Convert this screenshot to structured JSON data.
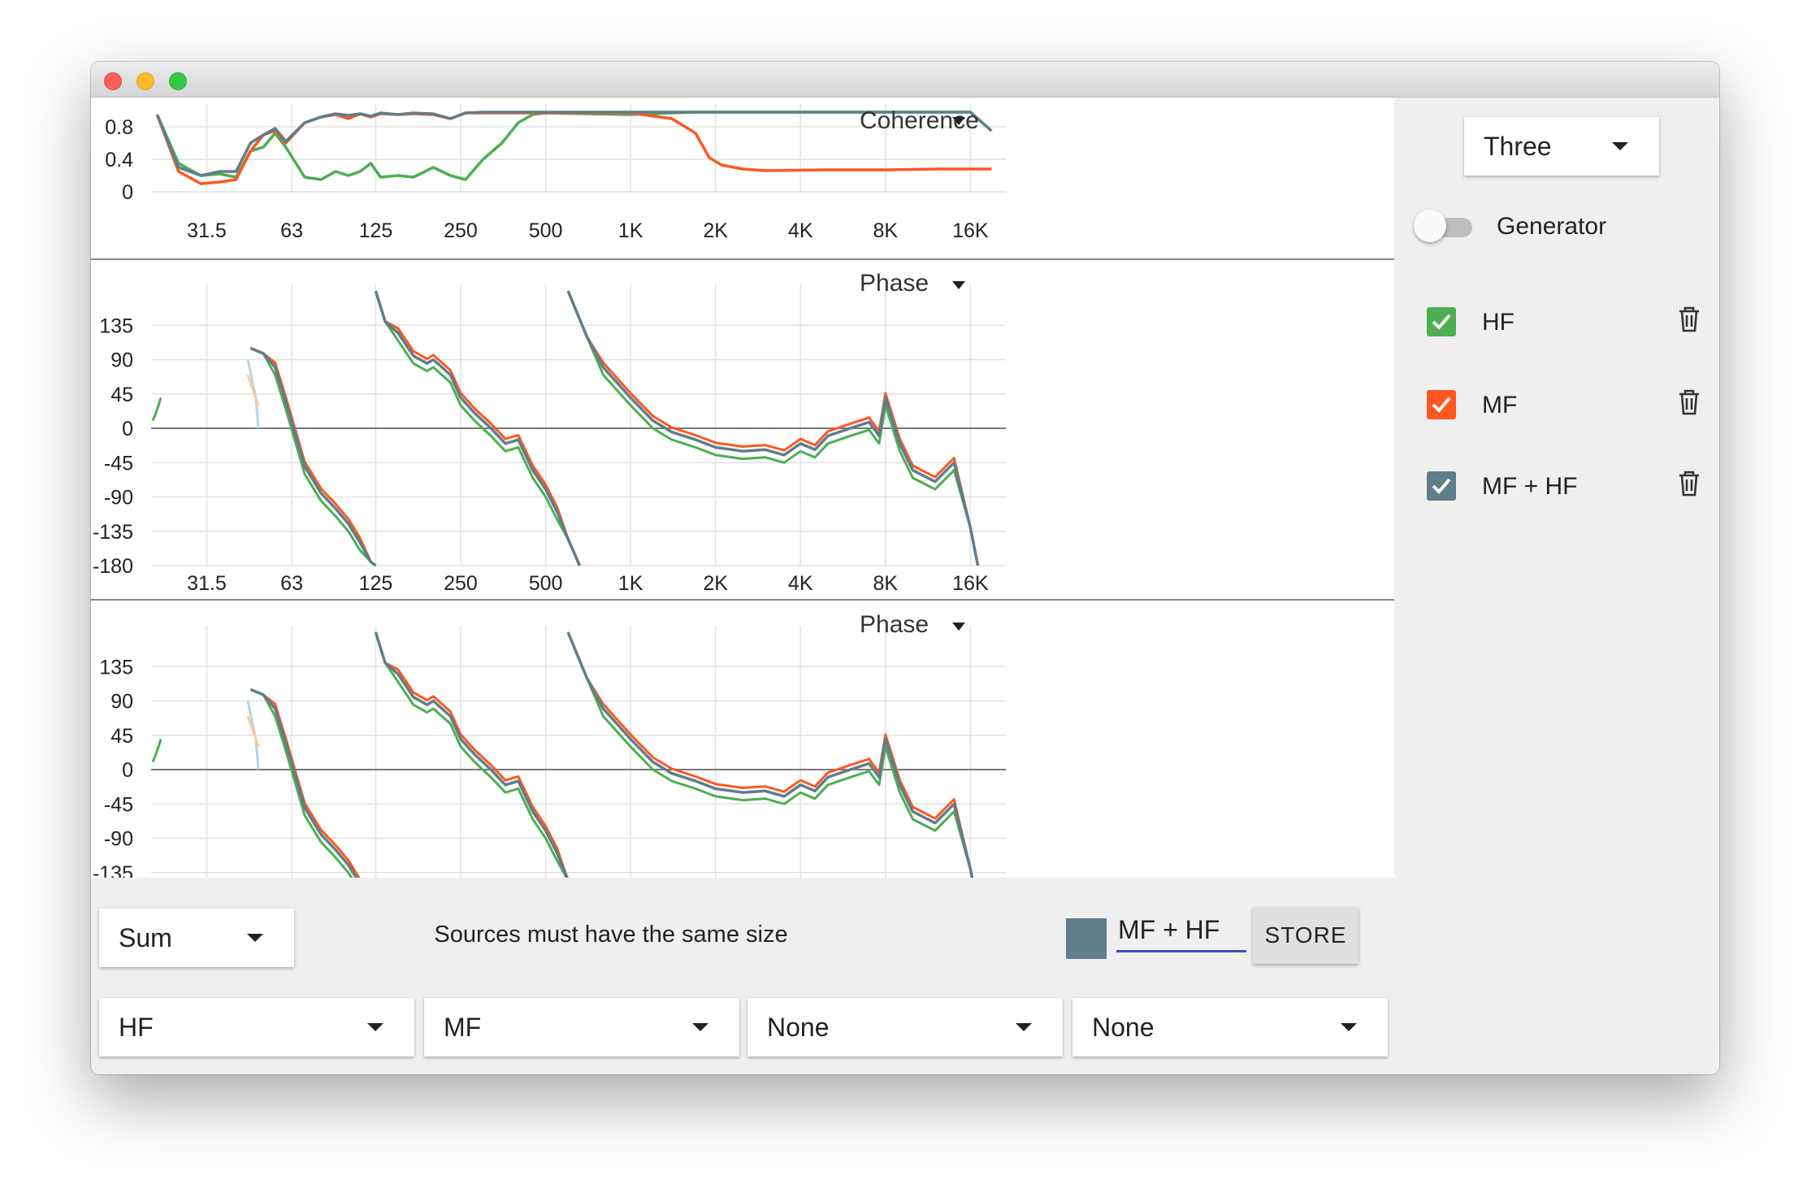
{
  "colors": {
    "hf": "#4caf50",
    "mf": "#ff5722",
    "sum": "#607d8b",
    "hf_light": "#b9e5b0",
    "mf_light": "#ffc79e",
    "sum_light": "#b8d4e3",
    "grid": "#e2e2e2",
    "axis": "#888888",
    "accent": "#3f51b5"
  },
  "freq_ticks": [
    "31.5",
    "63",
    "125",
    "250",
    "500",
    "1K",
    "2K",
    "4K",
    "8K",
    "16K"
  ],
  "charts": [
    {
      "title": "Coherence",
      "type": "line",
      "x_scale": "log",
      "y_ticks": [
        "0.8",
        "0.4",
        "0"
      ],
      "ylim": [
        0,
        1
      ]
    },
    {
      "title": "Phase",
      "type": "line",
      "x_scale": "log",
      "y_ticks": [
        "135",
        "90",
        "45",
        "0",
        "-45",
        "-90",
        "-135",
        "-180"
      ],
      "ylim": [
        -180,
        180
      ]
    },
    {
      "title": "Phase",
      "type": "line",
      "x_scale": "log",
      "y_ticks": [
        "135",
        "90",
        "45",
        "0",
        "-45",
        "-90",
        "-135"
      ],
      "ylim": [
        -180,
        180
      ]
    }
  ],
  "chart_data": [
    {
      "type": "line",
      "title": "Coherence",
      "x": [
        21,
        25,
        30,
        35,
        40,
        45,
        50,
        55,
        60,
        70,
        80,
        90,
        100,
        110,
        120,
        130,
        150,
        170,
        200,
        230,
        260,
        300,
        350,
        400,
        450,
        500,
        700,
        1000,
        1400,
        1700,
        1900,
        2100,
        2500,
        3000,
        5000,
        8000,
        12000,
        16000,
        19000
      ],
      "series": [
        {
          "name": "HF",
          "values": [
            0.95,
            0.35,
            0.2,
            0.22,
            0.18,
            0.5,
            0.55,
            0.72,
            0.55,
            0.18,
            0.15,
            0.25,
            0.2,
            0.25,
            0.35,
            0.18,
            0.2,
            0.18,
            0.3,
            0.2,
            0.15,
            0.4,
            0.6,
            0.85,
            0.95,
            0.97,
            0.96,
            0.95,
            0.97,
            0.98,
            0.98,
            0.98,
            0.98,
            0.98,
            0.98,
            0.98,
            0.98,
            0.98,
            0.75
          ]
        },
        {
          "name": "MF",
          "values": [
            0.95,
            0.25,
            0.1,
            0.12,
            0.15,
            0.5,
            0.7,
            0.75,
            0.6,
            0.85,
            0.92,
            0.95,
            0.9,
            0.96,
            0.92,
            0.96,
            0.95,
            0.96,
            0.95,
            0.9,
            0.97,
            0.97,
            0.97,
            0.97,
            0.97,
            0.97,
            0.97,
            0.97,
            0.9,
            0.72,
            0.42,
            0.33,
            0.28,
            0.26,
            0.27,
            0.27,
            0.28,
            0.28,
            0.28
          ]
        },
        {
          "name": "MF + HF",
          "values": [
            0.95,
            0.3,
            0.2,
            0.25,
            0.25,
            0.6,
            0.7,
            0.78,
            0.62,
            0.85,
            0.92,
            0.96,
            0.94,
            0.96,
            0.93,
            0.97,
            0.95,
            0.97,
            0.96,
            0.9,
            0.97,
            0.98,
            0.98,
            0.98,
            0.98,
            0.98,
            0.98,
            0.98,
            0.98,
            0.98,
            0.98,
            0.98,
            0.98,
            0.98,
            0.98,
            0.98,
            0.98,
            0.98,
            0.75
          ]
        }
      ]
    },
    {
      "type": "line",
      "title": "Phase",
      "x_scale": "log",
      "segments": [
        {
          "series": "MF + HF",
          "x": [
            45,
            50,
            55,
            60,
            70,
            80,
            90,
            100,
            110,
            120,
            125
          ],
          "y": [
            105,
            98,
            80,
            35,
            -50,
            -85,
            -105,
            -125,
            -150,
            -175,
            -180
          ]
        },
        {
          "series": "MF + HF",
          "x": [
            125,
            135,
            150,
            170,
            190,
            200,
            230,
            250,
            280,
            320,
            360,
            400,
            450,
            500,
            550,
            600,
            660
          ],
          "y": [
            180,
            140,
            125,
            95,
            85,
            90,
            70,
            40,
            20,
            0,
            -20,
            -15,
            -55,
            -80,
            -110,
            -145,
            -180
          ]
        },
        {
          "series": "MF + HF",
          "x": [
            600,
            700,
            800,
            1000,
            1200,
            1400,
            1700,
            2000,
            2500,
            3000,
            3500,
            4000,
            4500,
            5000,
            6000,
            7000,
            7600,
            8000,
            9000,
            10000,
            12000,
            14000,
            16000,
            17000
          ],
          "y": [
            180,
            120,
            80,
            40,
            10,
            -5,
            -15,
            -25,
            -30,
            -28,
            -35,
            -20,
            -28,
            -10,
            0,
            8,
            -10,
            40,
            -20,
            -55,
            -70,
            -45,
            -130,
            -180
          ]
        }
      ]
    },
    {
      "type": "line",
      "title": "Phase",
      "x_scale": "log",
      "note_ref": "same curves as chart 2"
    }
  ],
  "right_panel": {
    "mode_select": "Three",
    "generator_label": "Generator",
    "sources": [
      {
        "label": "HF",
        "color": "#4caf50",
        "checked": true
      },
      {
        "label": "MF",
        "color": "#ff5722",
        "checked": true
      },
      {
        "label": "MF + HF",
        "color": "#607d8b",
        "checked": true
      }
    ]
  },
  "bottom_panel": {
    "operation_select": "Sum",
    "status_text": "Sources must have the same size",
    "name_value": "MF + HF",
    "store_label": "STORE",
    "source_selects": [
      "HF",
      "MF",
      "None",
      "None"
    ]
  }
}
